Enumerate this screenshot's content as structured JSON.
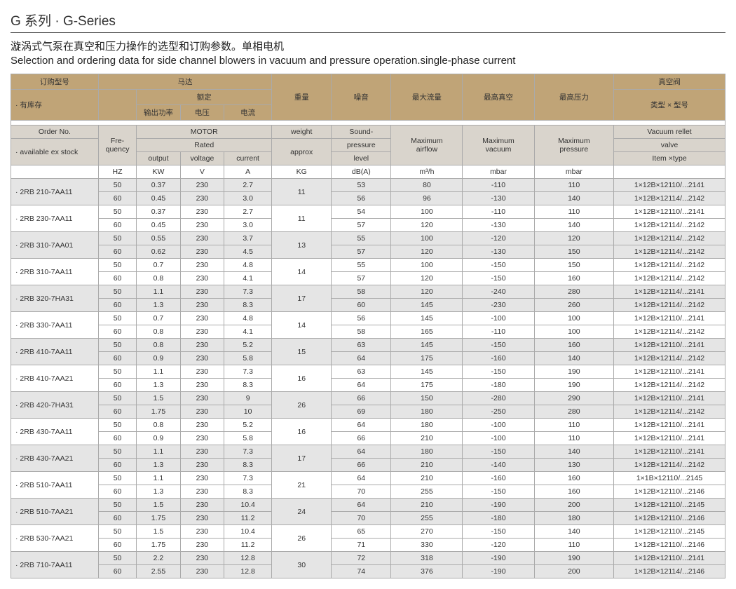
{
  "title_cn": "G 系列",
  "title_sep": " · ",
  "title_en": "G-Series",
  "subtitle_cn": "漩涡式气泵在真空和压力操作的选型和订购参数。单相电机",
  "subtitle_en": "Selection and ordering data for side channel blowers in vacuum and pressure operation.single-phase current",
  "colors": {
    "header_tan": "#c0a477",
    "header_gray": "#d9d4cc",
    "row_band": "#e5e5e5",
    "border": "#aaaaaa",
    "background": "#ffffff",
    "text": "#333333"
  },
  "cn_header": {
    "order": "订购型号",
    "stock": "· 有库存",
    "motor": "马达",
    "rated": "额定",
    "output": "输出功率",
    "voltage": "电压",
    "current": "电流",
    "weight": "重量",
    "noise": "噪音",
    "maxflow": "最大流量",
    "maxvac": "最高真空",
    "maxpres": "最高压力",
    "valve": "真空阀",
    "valvetype": "类型 × 型号"
  },
  "en_header": {
    "order": "Order No.",
    "stock": "· available ex stock",
    "freq": "Fre-\nquency",
    "motor": "MOTOR",
    "rated": "Rated",
    "output": "output",
    "voltage": "voltage",
    "current": "current",
    "weight": "weight",
    "approx": "approx",
    "sound": "Sound-",
    "pressure": "pressure",
    "level": "level",
    "maxair": "Maximum\nairflow",
    "maxvac": "Maximum\nvacuum",
    "maxpres": "Maximum\npressure",
    "valve": "Vacuum rellet",
    "valve2": "valve",
    "valvetype": "Item ×type"
  },
  "units": {
    "hz": "HZ",
    "kw": "KW",
    "v": "V",
    "a": "A",
    "kg": "KG",
    "db": "dB(A)",
    "m3h": "m³/h",
    "mbar1": "mbar",
    "mbar2": "mbar"
  },
  "rows": [
    {
      "order": "· 2RB 210-7AA11",
      "band": true,
      "weight": "11",
      "r50": {
        "kw": "0.37",
        "v": "230",
        "a": "2.7",
        "db": "53",
        "m3h": "80",
        "vac": "-110",
        "prs": "110",
        "valve": "1×12B×12110/...2141"
      },
      "r60": {
        "kw": "0.45",
        "v": "230",
        "a": "3.0",
        "db": "56",
        "m3h": "96",
        "vac": "-130",
        "prs": "140",
        "valve": "1×12B×12114/...2142"
      }
    },
    {
      "order": "· 2RB 230-7AA11",
      "band": false,
      "weight": "11",
      "r50": {
        "kw": "0.37",
        "v": "230",
        "a": "2.7",
        "db": "54",
        "m3h": "100",
        "vac": "-110",
        "prs": "110",
        "valve": "1×12B×12110/...2141"
      },
      "r60": {
        "kw": "0.45",
        "v": "230",
        "a": "3.0",
        "db": "57",
        "m3h": "120",
        "vac": "-130",
        "prs": "140",
        "valve": "1×12B×12114/...2142"
      }
    },
    {
      "order": "· 2RB 310-7AA01",
      "band": true,
      "weight": "13",
      "r50": {
        "kw": "0.55",
        "v": "230",
        "a": "3.7",
        "db": "55",
        "m3h": "100",
        "vac": "-120",
        "prs": "120",
        "valve": "1×12B×12114/...2142"
      },
      "r60": {
        "kw": "0.62",
        "v": "230",
        "a": "4.5",
        "db": "57",
        "m3h": "120",
        "vac": "-130",
        "prs": "150",
        "valve": "1×12B×12114/...2142"
      }
    },
    {
      "order": "· 2RB 310-7AA11",
      "band": false,
      "weight": "14",
      "r50": {
        "kw": "0.7",
        "v": "230",
        "a": "4.8",
        "db": "55",
        "m3h": "100",
        "vac": "-150",
        "prs": "150",
        "valve": "1×12B×12114/...2142"
      },
      "r60": {
        "kw": "0.8",
        "v": "230",
        "a": "4.1",
        "db": "57",
        "m3h": "120",
        "vac": "-150",
        "prs": "160",
        "valve": "1×12B×12114/...2142"
      }
    },
    {
      "order": "· 2RB 320-7HA31",
      "band": true,
      "weight": "17",
      "r50": {
        "kw": "1.1",
        "v": "230",
        "a": "7.3",
        "db": "58",
        "m3h": "120",
        "vac": "-240",
        "prs": "280",
        "valve": "1×12B×12114/...2141"
      },
      "r60": {
        "kw": "1.3",
        "v": "230",
        "a": "8.3",
        "db": "60",
        "m3h": "145",
        "vac": "-230",
        "prs": "260",
        "valve": "1×12B×12114/...2142"
      }
    },
    {
      "order": "· 2RB 330-7AA11",
      "band": false,
      "weight": "14",
      "r50": {
        "kw": "0.7",
        "v": "230",
        "a": "4.8",
        "db": "56",
        "m3h": "145",
        "vac": "-100",
        "prs": "100",
        "valve": "1×12B×12110/...2141"
      },
      "r60": {
        "kw": "0.8",
        "v": "230",
        "a": "4.1",
        "db": "58",
        "m3h": "165",
        "vac": "-110",
        "prs": "100",
        "valve": "1×12B×12114/...2142"
      }
    },
    {
      "order": "· 2RB 410-7AA11",
      "band": true,
      "weight": "15",
      "r50": {
        "kw": "0.8",
        "v": "230",
        "a": "5.2",
        "db": "63",
        "m3h": "145",
        "vac": "-150",
        "prs": "160",
        "valve": "1×12B×12110/...2141"
      },
      "r60": {
        "kw": "0.9",
        "v": "230",
        "a": "5.8",
        "db": "64",
        "m3h": "175",
        "vac": "-160",
        "prs": "140",
        "valve": "1×12B×12114/...2142"
      }
    },
    {
      "order": "· 2RB 410-7AA21",
      "band": false,
      "weight": "16",
      "r50": {
        "kw": "1.1",
        "v": "230",
        "a": "7.3",
        "db": "63",
        "m3h": "145",
        "vac": "-150",
        "prs": "190",
        "valve": "1×12B×12110/...2141"
      },
      "r60": {
        "kw": "1.3",
        "v": "230",
        "a": "8.3",
        "db": "64",
        "m3h": "175",
        "vac": "-180",
        "prs": "190",
        "valve": "1×12B×12114/...2142"
      }
    },
    {
      "order": "· 2RB 420-7HA31",
      "band": true,
      "weight": "26",
      "r50": {
        "kw": "1.5",
        "v": "230",
        "a": "9",
        "db": "66",
        "m3h": "150",
        "vac": "-280",
        "prs": "290",
        "valve": "1×12B×12110/...2141"
      },
      "r60": {
        "kw": "1.75",
        "v": "230",
        "a": "10",
        "db": "69",
        "m3h": "180",
        "vac": "-250",
        "prs": "280",
        "valve": "1×12B×12114/...2142"
      }
    },
    {
      "order": "· 2RB 430-7AA11",
      "band": false,
      "weight": "16",
      "r50": {
        "kw": "0.8",
        "v": "230",
        "a": "5.2",
        "db": "64",
        "m3h": "180",
        "vac": "-100",
        "prs": "110",
        "valve": "1×12B×12110/...2141"
      },
      "r60": {
        "kw": "0.9",
        "v": "230",
        "a": "5.8",
        "db": "66",
        "m3h": "210",
        "vac": "-100",
        "prs": "110",
        "valve": "1×12B×12110/...2141"
      }
    },
    {
      "order": "· 2RB 430-7AA21",
      "band": true,
      "weight": "17",
      "r50": {
        "kw": "1.1",
        "v": "230",
        "a": "7.3",
        "db": "64",
        "m3h": "180",
        "vac": "-150",
        "prs": "140",
        "valve": "1×12B×12110/...2141"
      },
      "r60": {
        "kw": "1.3",
        "v": "230",
        "a": "8.3",
        "db": "66",
        "m3h": "210",
        "vac": "-140",
        "prs": "130",
        "valve": "1×12B×12114/...2142"
      }
    },
    {
      "order": "· 2RB 510-7AA11",
      "band": false,
      "weight": "21",
      "r50": {
        "kw": "1.1",
        "v": "230",
        "a": "7.3",
        "db": "64",
        "m3h": "210",
        "vac": "-160",
        "prs": "160",
        "valve": "1×1B×12110/...2145"
      },
      "r60": {
        "kw": "1.3",
        "v": "230",
        "a": "8.3",
        "db": "70",
        "m3h": "255",
        "vac": "-150",
        "prs": "160",
        "valve": "1×12B×12110/...2146"
      }
    },
    {
      "order": "· 2RB 510-7AA21",
      "band": true,
      "weight": "24",
      "r50": {
        "kw": "1.5",
        "v": "230",
        "a": "10.4",
        "db": "64",
        "m3h": "210",
        "vac": "-190",
        "prs": "200",
        "valve": "1×12B×12110/...2145"
      },
      "r60": {
        "kw": "1.75",
        "v": "230",
        "a": "11.2",
        "db": "70",
        "m3h": "255",
        "vac": "-180",
        "prs": "180",
        "valve": "1×12B×12110/...2146"
      }
    },
    {
      "order": "· 2RB 530-7AA21",
      "band": false,
      "weight": "26",
      "r50": {
        "kw": "1.5",
        "v": "230",
        "a": "10.4",
        "db": "65",
        "m3h": "270",
        "vac": "-150",
        "prs": "140",
        "valve": "1×12B×12110/...2145"
      },
      "r60": {
        "kw": "1.75",
        "v": "230",
        "a": "11.2",
        "db": "71",
        "m3h": "330",
        "vac": "-120",
        "prs": "110",
        "valve": "1×12B×12110/...2146"
      }
    },
    {
      "order": "· 2RB 710-7AA11",
      "band": true,
      "weight": "30",
      "r50": {
        "kw": "2.2",
        "v": "230",
        "a": "12.8",
        "db": "72",
        "m3h": "318",
        "vac": "-190",
        "prs": "190",
        "valve": "1×12B×12110/...2141"
      },
      "r60": {
        "kw": "2.55",
        "v": "230",
        "a": "12.8",
        "db": "74",
        "m3h": "376",
        "vac": "-190",
        "prs": "200",
        "valve": "1×12B×12114/...2146"
      }
    }
  ]
}
